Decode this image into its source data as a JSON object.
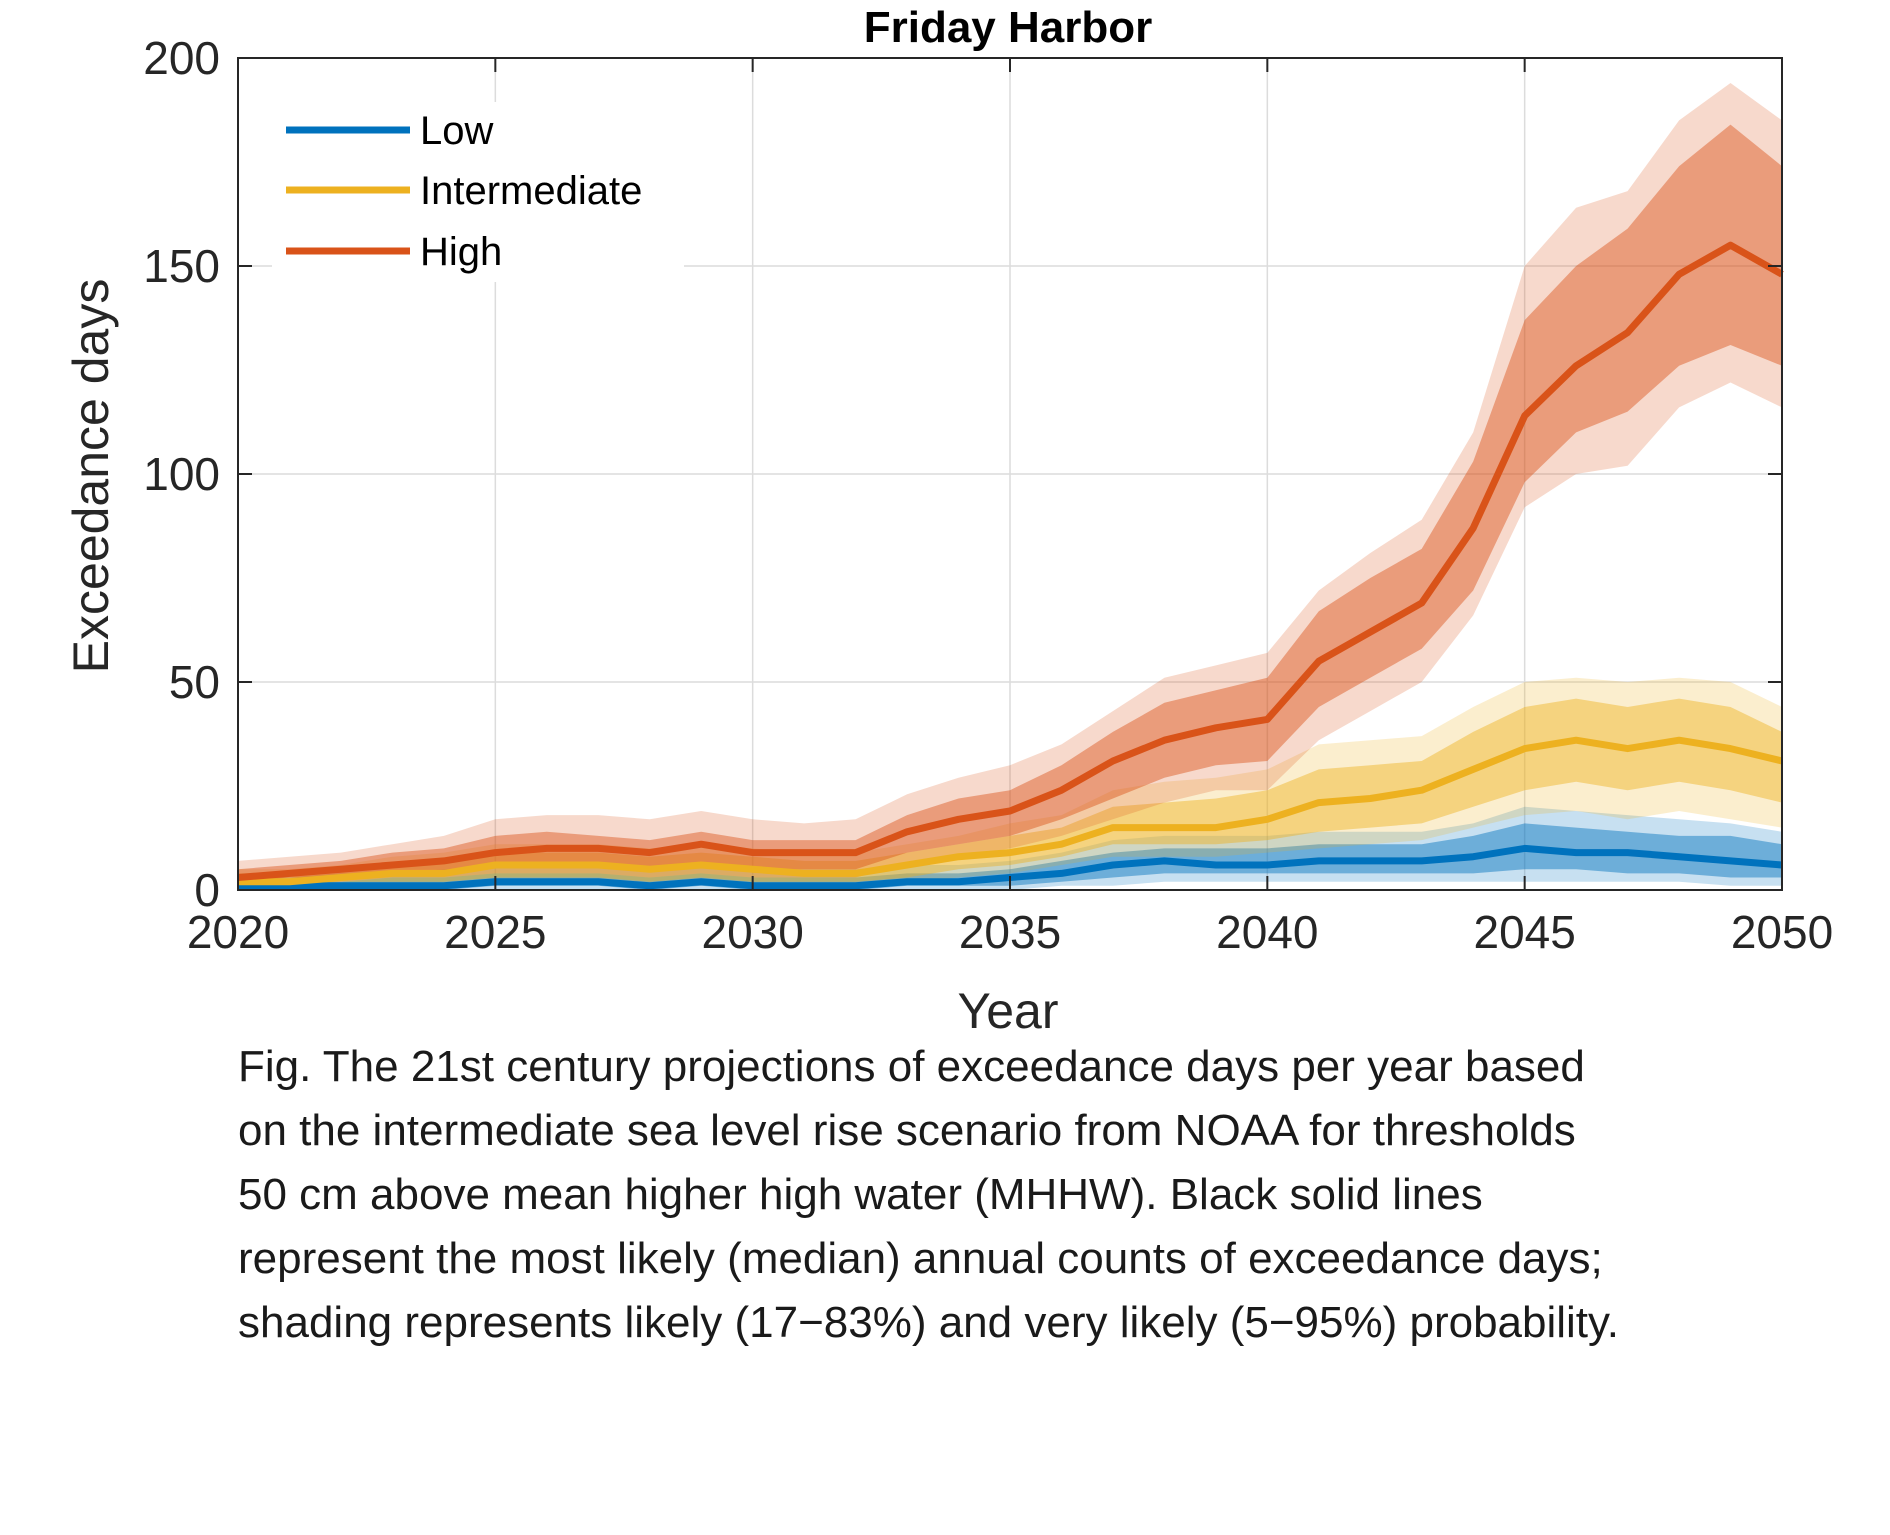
{
  "caption": {
    "lines": [
      "Fig. The 21st century projections of exceedance days per year based",
      "on the intermediate sea level rise scenario from NOAA for thresholds",
      "50 cm above mean higher high water (MHHW). Black solid lines",
      "represent the most likely (median) annual counts of exceedance days;",
      "shading represents likely (17−83%) and very likely (5−95%) probability."
    ]
  },
  "chart_data": {
    "type": "line",
    "title": "Friday Harbor",
    "xlabel": "Year",
    "ylabel": "Exceedance days",
    "xlim": [
      2020,
      2050
    ],
    "ylim": [
      0,
      200
    ],
    "x_ticks": [
      2020,
      2025,
      2030,
      2035,
      2040,
      2045,
      2050
    ],
    "y_ticks": [
      0,
      50,
      100,
      150,
      200
    ],
    "grid": true,
    "legend_position": "top-left",
    "x": [
      2020,
      2021,
      2022,
      2023,
      2024,
      2025,
      2026,
      2027,
      2028,
      2029,
      2030,
      2031,
      2032,
      2033,
      2034,
      2035,
      2036,
      2037,
      2038,
      2039,
      2040,
      2041,
      2042,
      2043,
      2044,
      2045,
      2046,
      2047,
      2048,
      2049,
      2050
    ],
    "series": [
      {
        "name": "Low",
        "color": "#0072BD",
        "median": [
          1,
          1,
          1,
          1,
          1,
          2,
          2,
          2,
          1,
          2,
          1,
          1,
          1,
          2,
          2,
          3,
          4,
          6,
          7,
          6,
          6,
          7,
          7,
          7,
          8,
          10,
          9,
          9,
          8,
          7,
          6
        ],
        "likely_lo": [
          0,
          0,
          0,
          0,
          0,
          1,
          1,
          1,
          0,
          1,
          0,
          0,
          0,
          1,
          1,
          1,
          2,
          3,
          4,
          4,
          4,
          4,
          4,
          4,
          4,
          5,
          5,
          4,
          4,
          3,
          3
        ],
        "likely_hi": [
          2,
          2,
          2,
          3,
          3,
          4,
          4,
          4,
          3,
          4,
          3,
          3,
          3,
          4,
          4,
          5,
          7,
          9,
          10,
          10,
          10,
          11,
          11,
          11,
          13,
          16,
          15,
          14,
          13,
          13,
          11
        ],
        "vlikely_lo": [
          0,
          0,
          0,
          0,
          0,
          0,
          0,
          0,
          0,
          0,
          0,
          0,
          0,
          0,
          0,
          0,
          1,
          1,
          2,
          2,
          2,
          2,
          2,
          2,
          2,
          2,
          2,
          2,
          2,
          1,
          1
        ],
        "vlikely_hi": [
          3,
          3,
          4,
          4,
          5,
          6,
          6,
          6,
          5,
          6,
          5,
          5,
          5,
          6,
          6,
          7,
          9,
          12,
          13,
          13,
          13,
          14,
          14,
          14,
          16,
          20,
          19,
          18,
          17,
          16,
          14
        ]
      },
      {
        "name": "Intermediate",
        "color": "#EDB120",
        "median": [
          2,
          2,
          3,
          4,
          4,
          6,
          6,
          6,
          5,
          6,
          5,
          4,
          4,
          6,
          8,
          9,
          11,
          15,
          15,
          15,
          17,
          21,
          22,
          24,
          29,
          34,
          36,
          34,
          36,
          34,
          31
        ],
        "likely_lo": [
          1,
          1,
          2,
          2,
          2,
          3,
          3,
          3,
          2,
          3,
          2,
          2,
          2,
          3,
          5,
          6,
          8,
          11,
          11,
          11,
          12,
          14,
          15,
          16,
          20,
          24,
          26,
          24,
          26,
          24,
          21
        ],
        "likely_hi": [
          4,
          4,
          5,
          6,
          7,
          9,
          9,
          9,
          8,
          9,
          8,
          7,
          7,
          9,
          11,
          13,
          15,
          20,
          21,
          22,
          24,
          29,
          30,
          31,
          38,
          44,
          46,
          44,
          46,
          44,
          38
        ],
        "vlikely_lo": [
          0,
          0,
          1,
          1,
          1,
          2,
          2,
          2,
          1,
          2,
          1,
          1,
          1,
          2,
          3,
          4,
          6,
          8,
          8,
          8,
          9,
          10,
          11,
          12,
          15,
          18,
          19,
          17,
          19,
          17,
          15
        ],
        "vlikely_hi": [
          5,
          5,
          6,
          8,
          9,
          11,
          11,
          11,
          10,
          11,
          10,
          9,
          9,
          11,
          13,
          16,
          18,
          24,
          26,
          27,
          29,
          35,
          36,
          37,
          44,
          50,
          51,
          50,
          51,
          50,
          44
        ]
      },
      {
        "name": "High",
        "color": "#D95319",
        "median": [
          3,
          4,
          5,
          6,
          7,
          9,
          10,
          10,
          9,
          11,
          9,
          9,
          9,
          14,
          17,
          19,
          24,
          31,
          36,
          39,
          41,
          55,
          62,
          69,
          87,
          114,
          126,
          134,
          148,
          155,
          148
        ],
        "likely_lo": [
          2,
          3,
          3,
          4,
          4,
          6,
          6,
          6,
          5,
          6,
          5,
          5,
          5,
          9,
          11,
          13,
          17,
          22,
          27,
          30,
          31,
          44,
          51,
          58,
          72,
          98,
          110,
          115,
          126,
          131,
          126
        ],
        "likely_hi": [
          5,
          6,
          7,
          9,
          10,
          13,
          14,
          13,
          12,
          14,
          12,
          12,
          12,
          18,
          22,
          24,
          30,
          38,
          45,
          48,
          51,
          67,
          75,
          82,
          103,
          137,
          150,
          159,
          174,
          184,
          174
        ],
        "vlikely_lo": [
          1,
          2,
          2,
          3,
          3,
          4,
          4,
          4,
          3,
          4,
          3,
          3,
          3,
          6,
          8,
          10,
          13,
          17,
          21,
          24,
          24,
          36,
          43,
          50,
          66,
          92,
          100,
          102,
          116,
          122,
          116
        ],
        "vlikely_hi": [
          7,
          8,
          9,
          11,
          13,
          17,
          18,
          18,
          17,
          19,
          17,
          16,
          17,
          23,
          27,
          30,
          35,
          43,
          51,
          54,
          57,
          72,
          81,
          89,
          110,
          150,
          164,
          168,
          185,
          194,
          185
        ]
      }
    ]
  }
}
